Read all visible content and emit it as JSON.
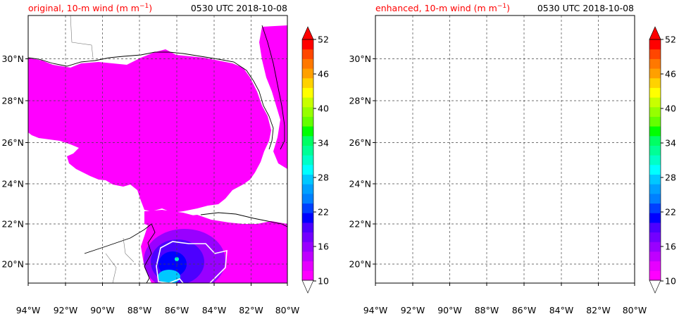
{
  "panels": [
    {
      "id": "original",
      "title_main": "original, 10-m wind (m m",
      "title_exp": "−1",
      "title_close": ")",
      "time": "0530 UTC 2018-10-08"
    },
    {
      "id": "enhanced",
      "title_main": "enhanced, 10-m wind (m m",
      "title_exp": "−1",
      "title_close": ")",
      "time": "0530 UTC 2018-10-08"
    }
  ],
  "lon_ticks": [
    "94°W",
    "92°W",
    "90°W",
    "88°W",
    "86°W",
    "84°W",
    "82°W",
    "80°W"
  ],
  "lat_ticks": [
    "30°N",
    "28°N",
    "26°N",
    "24°N",
    "22°N",
    "20°N"
  ],
  "colorbar": {
    "labels": [
      "52",
      "46",
      "40",
      "34",
      "28",
      "22",
      "16",
      "10"
    ],
    "colors": [
      "#ff00ff",
      "#e600ff",
      "#bf00ff",
      "#9900ff",
      "#7300ff",
      "#4d00ff",
      "#0000ff",
      "#0040ff",
      "#0080ff",
      "#00a0ff",
      "#00c8ff",
      "#00ffff",
      "#00ffc8",
      "#00ff96",
      "#00ff64",
      "#00ff00",
      "#64ff00",
      "#96ff00",
      "#c8ff00",
      "#ffff00",
      "#ffd200",
      "#ffa000",
      "#ff7800",
      "#ff4600",
      "#ff0000"
    ],
    "extend_max_color": "#ff0000"
  },
  "colors": {
    "land_wind": "#ff00ff",
    "grid": "#444444",
    "title_accent": "#ff0000"
  }
}
